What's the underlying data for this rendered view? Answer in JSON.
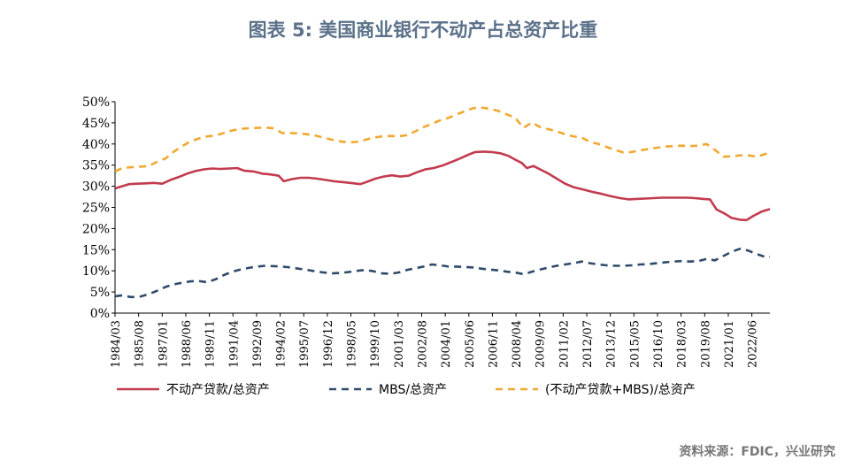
{
  "title": "图表 5:   美国商业银行不动产占总资产比重",
  "source": "资料来源：FDIC，兴业研究",
  "chart_data": {
    "type": "line",
    "title": "图表 5:   美国商业银行不动产占总资产比重",
    "xlabel": "",
    "ylabel": "",
    "ylim": [
      0,
      50
    ],
    "y_ticks": [
      "0%",
      "5%",
      "10%",
      "15%",
      "20%",
      "25%",
      "30%",
      "35%",
      "40%",
      "45%",
      "50%"
    ],
    "x_range": [
      1984.167,
      2023.5
    ],
    "x_tick_labels": [
      "1984/03",
      "1985/08",
      "1987/01",
      "1988/06",
      "1989/11",
      "1991/04",
      "1992/09",
      "1994/02",
      "1995/07",
      "1996/12",
      "1998/05",
      "1999/10",
      "2001/03",
      "2002/08",
      "2004/01",
      "2005/06",
      "2006/11",
      "2008/04",
      "2009/09",
      "2011/02",
      "2012/07",
      "2013/12",
      "2015/05",
      "2016/10",
      "2018/03",
      "2019/08",
      "2021/01",
      "2022/06"
    ],
    "legend_position": "bottom",
    "series": [
      {
        "name": "不动产贷款/总资产",
        "color": "#c23b4e",
        "style": "solid",
        "points": [
          [
            1984.17,
            29.5
          ],
          [
            1985,
            30.5
          ],
          [
            1985.5,
            30.6
          ],
          [
            1986,
            30.7
          ],
          [
            1986.5,
            30.8
          ],
          [
            1987,
            30.6
          ],
          [
            1987.5,
            31.5
          ],
          [
            1988,
            32.2
          ],
          [
            1988.5,
            33.0
          ],
          [
            1989,
            33.6
          ],
          [
            1989.5,
            34.0
          ],
          [
            1990,
            34.2
          ],
          [
            1990.5,
            34.1
          ],
          [
            1991,
            34.2
          ],
          [
            1991.5,
            34.3
          ],
          [
            1991.9,
            33.7
          ],
          [
            1992.5,
            33.5
          ],
          [
            1993,
            33.0
          ],
          [
            1993.5,
            32.8
          ],
          [
            1994,
            32.5
          ],
          [
            1994.3,
            31.2
          ],
          [
            1994.8,
            31.7
          ],
          [
            1995.3,
            32.0
          ],
          [
            1995.8,
            32.0
          ],
          [
            1996.3,
            31.8
          ],
          [
            1996.8,
            31.5
          ],
          [
            1997.3,
            31.2
          ],
          [
            1997.8,
            31.0
          ],
          [
            1998.3,
            30.8
          ],
          [
            1998.9,
            30.5
          ],
          [
            1999.4,
            31.2
          ],
          [
            1999.8,
            31.8
          ],
          [
            2000.3,
            32.3
          ],
          [
            2000.8,
            32.6
          ],
          [
            2001.3,
            32.3
          ],
          [
            2001.8,
            32.5
          ],
          [
            2002.3,
            33.3
          ],
          [
            2002.8,
            34.0
          ],
          [
            2003.3,
            34.3
          ],
          [
            2003.9,
            35.0
          ],
          [
            2004.4,
            35.8
          ],
          [
            2004.9,
            36.6
          ],
          [
            2005.4,
            37.5
          ],
          [
            2005.8,
            38.1
          ],
          [
            2006.3,
            38.2
          ],
          [
            2006.8,
            38.1
          ],
          [
            2007.3,
            37.8
          ],
          [
            2007.8,
            37.2
          ],
          [
            2008.2,
            36.3
          ],
          [
            2008.6,
            35.5
          ],
          [
            2008.9,
            34.3
          ],
          [
            2009.3,
            34.8
          ],
          [
            2009.7,
            34.0
          ],
          [
            2010.2,
            33.0
          ],
          [
            2010.7,
            31.8
          ],
          [
            2011.2,
            30.6
          ],
          [
            2011.7,
            29.8
          ],
          [
            2012.2,
            29.3
          ],
          [
            2012.8,
            28.7
          ],
          [
            2013.4,
            28.2
          ],
          [
            2013.9,
            27.7
          ],
          [
            2014.5,
            27.2
          ],
          [
            2015,
            26.9
          ],
          [
            2015.5,
            27.0
          ],
          [
            2016,
            27.1
          ],
          [
            2016.5,
            27.2
          ],
          [
            2017,
            27.3
          ],
          [
            2017.5,
            27.3
          ],
          [
            2018,
            27.3
          ],
          [
            2018.5,
            27.3
          ],
          [
            2019,
            27.2
          ],
          [
            2019.5,
            27.0
          ],
          [
            2019.9,
            26.9
          ],
          [
            2020.3,
            24.5
          ],
          [
            2020.8,
            23.5
          ],
          [
            2021.2,
            22.5
          ],
          [
            2021.7,
            22.1
          ],
          [
            2022.1,
            22.0
          ],
          [
            2022.5,
            23.0
          ],
          [
            2023.0,
            24.0
          ],
          [
            2023.5,
            24.6
          ]
        ]
      },
      {
        "name": "MBS/总资产",
        "color": "#2f4a6a",
        "style": "dashed",
        "points": [
          [
            1984.17,
            4.0
          ],
          [
            1984.6,
            4.2
          ],
          [
            1985.1,
            3.8
          ],
          [
            1985.6,
            3.8
          ],
          [
            1986.2,
            4.5
          ],
          [
            1986.7,
            5.3
          ],
          [
            1987.2,
            6.2
          ],
          [
            1987.7,
            6.8
          ],
          [
            1988.2,
            7.2
          ],
          [
            1988.7,
            7.5
          ],
          [
            1989.2,
            7.6
          ],
          [
            1989.7,
            7.3
          ],
          [
            1990.2,
            8.0
          ],
          [
            1990.7,
            9.0
          ],
          [
            1991.2,
            9.8
          ],
          [
            1991.7,
            10.3
          ],
          [
            1992.2,
            10.7
          ],
          [
            1992.7,
            11.0
          ],
          [
            1993.2,
            11.2
          ],
          [
            1993.7,
            11.1
          ],
          [
            1994.2,
            11.0
          ],
          [
            1994.7,
            10.8
          ],
          [
            1995.2,
            10.5
          ],
          [
            1995.7,
            10.2
          ],
          [
            1996.2,
            9.9
          ],
          [
            1996.7,
            9.6
          ],
          [
            1997.2,
            9.4
          ],
          [
            1997.7,
            9.5
          ],
          [
            1998.2,
            9.7
          ],
          [
            1998.7,
            10.0
          ],
          [
            1999.2,
            10.2
          ],
          [
            1999.7,
            9.9
          ],
          [
            2000.2,
            9.4
          ],
          [
            2000.7,
            9.3
          ],
          [
            2001.2,
            9.6
          ],
          [
            2001.7,
            10.2
          ],
          [
            2002.2,
            10.6
          ],
          [
            2002.7,
            11.0
          ],
          [
            2003.2,
            11.5
          ],
          [
            2003.7,
            11.3
          ],
          [
            2004.2,
            11.0
          ],
          [
            2004.7,
            11.0
          ],
          [
            2005.2,
            10.9
          ],
          [
            2005.7,
            10.8
          ],
          [
            2006.2,
            10.5
          ],
          [
            2006.7,
            10.3
          ],
          [
            2007.2,
            10.1
          ],
          [
            2007.7,
            9.8
          ],
          [
            2008.2,
            9.6
          ],
          [
            2008.7,
            9.2
          ],
          [
            2009.2,
            9.8
          ],
          [
            2009.7,
            10.3
          ],
          [
            2010.2,
            10.8
          ],
          [
            2010.7,
            11.2
          ],
          [
            2011.2,
            11.5
          ],
          [
            2011.7,
            11.8
          ],
          [
            2012.2,
            12.2
          ],
          [
            2012.7,
            11.8
          ],
          [
            2013.2,
            11.5
          ],
          [
            2013.7,
            11.3
          ],
          [
            2014.2,
            11.2
          ],
          [
            2014.7,
            11.2
          ],
          [
            2015.2,
            11.3
          ],
          [
            2015.7,
            11.5
          ],
          [
            2016.2,
            11.6
          ],
          [
            2016.7,
            11.8
          ],
          [
            2017.2,
            12.0
          ],
          [
            2017.7,
            12.2
          ],
          [
            2018.2,
            12.3
          ],
          [
            2018.7,
            12.2
          ],
          [
            2019.2,
            12.3
          ],
          [
            2019.7,
            12.8
          ],
          [
            2020.2,
            12.5
          ],
          [
            2020.7,
            13.5
          ],
          [
            2021.2,
            14.5
          ],
          [
            2021.7,
            15.2
          ],
          [
            2022.2,
            14.8
          ],
          [
            2022.7,
            14.0
          ],
          [
            2023.2,
            13.3
          ],
          [
            2023.5,
            13.3
          ]
        ]
      },
      {
        "name": "(不动产贷款+MBS)/总资产",
        "color": "#f0a830",
        "style": "dashed",
        "points": [
          [
            1984.17,
            33.5
          ],
          [
            1984.6,
            34.3
          ],
          [
            1985.1,
            34.5
          ],
          [
            1985.6,
            34.6
          ],
          [
            1986.2,
            34.8
          ],
          [
            1986.7,
            35.8
          ],
          [
            1987.2,
            36.6
          ],
          [
            1987.7,
            38.2
          ],
          [
            1988.2,
            39.5
          ],
          [
            1988.7,
            40.6
          ],
          [
            1989.2,
            41.3
          ],
          [
            1989.7,
            41.8
          ],
          [
            1990.2,
            42.0
          ],
          [
            1990.7,
            42.6
          ],
          [
            1991.2,
            43.2
          ],
          [
            1991.7,
            43.6
          ],
          [
            1992.2,
            43.7
          ],
          [
            1992.7,
            43.8
          ],
          [
            1993.2,
            43.9
          ],
          [
            1993.7,
            43.7
          ],
          [
            1994.2,
            42.6
          ],
          [
            1994.7,
            42.6
          ],
          [
            1995.2,
            42.5
          ],
          [
            1995.7,
            42.3
          ],
          [
            1996.2,
            42.0
          ],
          [
            1996.7,
            41.5
          ],
          [
            1997.2,
            41.0
          ],
          [
            1997.7,
            40.6
          ],
          [
            1998.2,
            40.4
          ],
          [
            1998.7,
            40.5
          ],
          [
            1999.2,
            41.0
          ],
          [
            1999.7,
            41.5
          ],
          [
            2000.2,
            41.8
          ],
          [
            2000.7,
            41.9
          ],
          [
            2001.2,
            41.8
          ],
          [
            2001.7,
            42.1
          ],
          [
            2002.2,
            43.0
          ],
          [
            2002.7,
            44.0
          ],
          [
            2003.2,
            44.8
          ],
          [
            2003.7,
            45.6
          ],
          [
            2004.2,
            46.2
          ],
          [
            2004.7,
            47.0
          ],
          [
            2005.2,
            47.8
          ],
          [
            2005.7,
            48.5
          ],
          [
            2006.2,
            48.6
          ],
          [
            2006.7,
            48.3
          ],
          [
            2007.2,
            47.8
          ],
          [
            2007.7,
            47.0
          ],
          [
            2008.2,
            46.2
          ],
          [
            2008.7,
            43.8
          ],
          [
            2009.2,
            45.1
          ],
          [
            2009.7,
            44.0
          ],
          [
            2010.2,
            43.5
          ],
          [
            2010.7,
            43.0
          ],
          [
            2011.2,
            42.3
          ],
          [
            2011.7,
            41.8
          ],
          [
            2012.2,
            41.5
          ],
          [
            2012.7,
            40.5
          ],
          [
            2013.2,
            40.0
          ],
          [
            2013.7,
            39.3
          ],
          [
            2014.2,
            38.6
          ],
          [
            2014.7,
            38.0
          ],
          [
            2015.2,
            38.1
          ],
          [
            2015.7,
            38.5
          ],
          [
            2016.2,
            38.8
          ],
          [
            2016.7,
            39.1
          ],
          [
            2017.2,
            39.4
          ],
          [
            2017.7,
            39.5
          ],
          [
            2018.2,
            39.6
          ],
          [
            2018.7,
            39.5
          ],
          [
            2019.2,
            39.6
          ],
          [
            2019.7,
            40.0
          ],
          [
            2020.2,
            38.6
          ],
          [
            2020.7,
            37.0
          ],
          [
            2021.2,
            37.1
          ],
          [
            2021.7,
            37.3
          ],
          [
            2022.2,
            37.3
          ],
          [
            2022.7,
            37.0
          ],
          [
            2023.2,
            37.6
          ],
          [
            2023.5,
            37.9
          ]
        ]
      }
    ]
  }
}
